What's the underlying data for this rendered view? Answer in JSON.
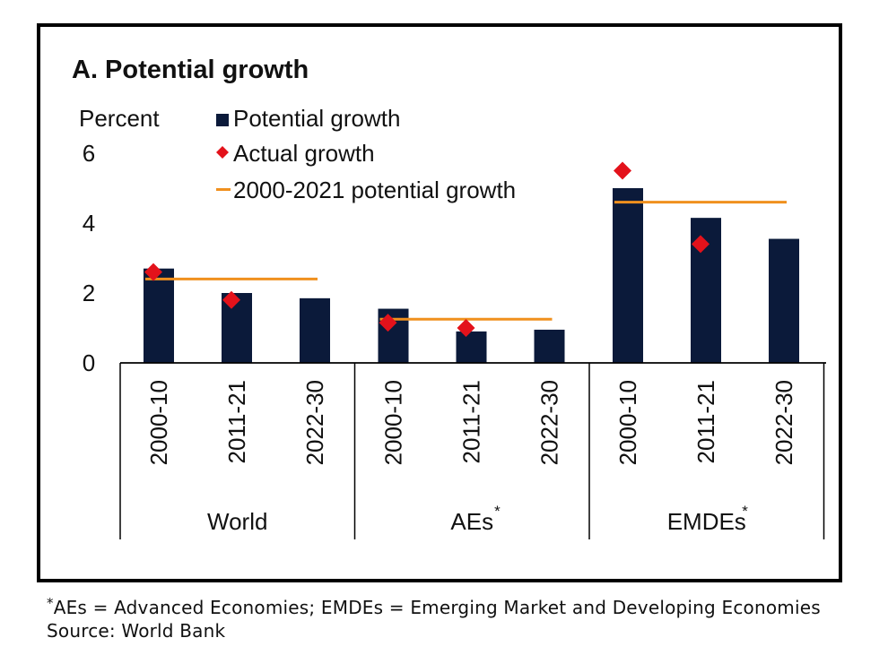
{
  "chart_data": {
    "type": "bar",
    "title": "A. Potential growth",
    "ylabel": "Percent",
    "ylim": [
      0,
      6
    ],
    "yticks": [
      0,
      2,
      4,
      6
    ],
    "grid": false,
    "legend_position": "top-left",
    "groups": [
      {
        "label": "World",
        "note_marker": ""
      },
      {
        "label": "AEs",
        "note_marker": "*"
      },
      {
        "label": "EMDEs",
        "note_marker": "*"
      }
    ],
    "categories": [
      "2000-10",
      "2011-21",
      "2022-30"
    ],
    "series": [
      {
        "name": "Potential growth",
        "kind": "bar",
        "color": "#0b1a3a",
        "values": [
          [
            2.7,
            2.0,
            1.85
          ],
          [
            1.55,
            0.9,
            0.95
          ],
          [
            5.0,
            4.15,
            3.55
          ]
        ]
      },
      {
        "name": "Actual growth",
        "kind": "marker",
        "color": "#e3121b",
        "values": [
          [
            2.6,
            1.8,
            null
          ],
          [
            1.15,
            1.0,
            null
          ],
          [
            5.5,
            3.4,
            null
          ]
        ]
      },
      {
        "name": "2000-2021 potential growth",
        "kind": "hline",
        "color": "#f0901e",
        "values": [
          2.4,
          1.25,
          4.6
        ]
      }
    ]
  },
  "footnote": {
    "marker": "*",
    "text": "AEs = Advanced Economies; EMDEs = Emerging Market and Developing Economies",
    "source": "Source: World Bank"
  }
}
